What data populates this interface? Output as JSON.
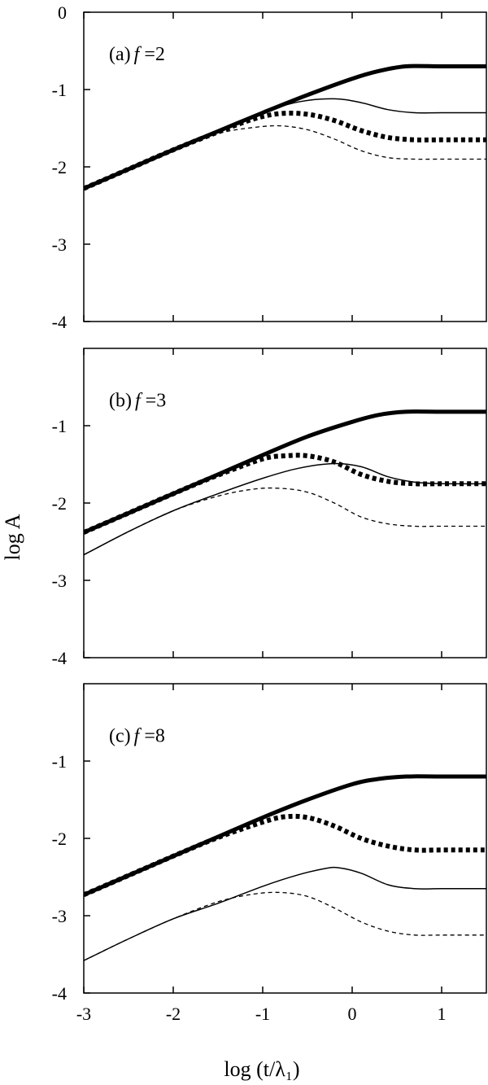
{
  "axes": {
    "xlabel": "log (t/λ₁)",
    "ylabel": "log A"
  },
  "chart_data": [
    {
      "type": "line",
      "panel_label": "(a)",
      "f_label": "f",
      "f_value": "=2",
      "xlim": [
        -3,
        1.5
      ],
      "ylim": [
        -4,
        0
      ],
      "x_ticks": [
        "-3",
        "-2",
        "-1",
        "0",
        "1"
      ],
      "y_ticks": [
        "0",
        "-1",
        "-2",
        "-3",
        "-4"
      ],
      "series": [
        {
          "style": "thick-solid",
          "x": [
            -3,
            -2.5,
            -2,
            -1.5,
            -1,
            -0.5,
            0,
            0.3,
            0.6,
            1,
            1.5
          ],
          "y": [
            -2.28,
            -2.03,
            -1.78,
            -1.54,
            -1.3,
            -1.07,
            -0.86,
            -0.76,
            -0.7,
            -0.7,
            -0.7
          ]
        },
        {
          "style": "thin-solid",
          "x": [
            -3,
            -2.5,
            -2,
            -1.5,
            -1,
            -0.6,
            -0.2,
            0.1,
            0.4,
            0.7,
            1,
            1.5
          ],
          "y": [
            -2.28,
            -2.03,
            -1.78,
            -1.54,
            -1.3,
            -1.16,
            -1.12,
            -1.17,
            -1.26,
            -1.3,
            -1.3,
            -1.3
          ]
        },
        {
          "style": "thick-dotted",
          "x": [
            -3,
            -2.5,
            -2,
            -1.5,
            -1.1,
            -0.8,
            -0.5,
            -0.2,
            0.1,
            0.4,
            0.7,
            1,
            1.5
          ],
          "y": [
            -2.28,
            -2.03,
            -1.78,
            -1.55,
            -1.38,
            -1.31,
            -1.32,
            -1.4,
            -1.53,
            -1.62,
            -1.65,
            -1.65,
            -1.65
          ]
        },
        {
          "style": "thin-dashed",
          "x": [
            -3,
            -2.5,
            -2,
            -1.5,
            -1.1,
            -0.8,
            -0.5,
            -0.2,
            0.1,
            0.4,
            0.7,
            1,
            1.5
          ],
          "y": [
            -2.28,
            -2.03,
            -1.78,
            -1.57,
            -1.49,
            -1.47,
            -1.52,
            -1.64,
            -1.79,
            -1.88,
            -1.9,
            -1.9,
            -1.9
          ]
        }
      ]
    },
    {
      "type": "line",
      "panel_label": "(b)",
      "f_label": "f",
      "f_value": "=3",
      "xlim": [
        -3,
        1.5
      ],
      "ylim": [
        -4,
        0
      ],
      "x_ticks": [
        "-3",
        "-2",
        "-1",
        "0",
        "1"
      ],
      "y_ticks": [
        "-1",
        "-2",
        "-3",
        "-4"
      ],
      "series": [
        {
          "style": "thick-solid",
          "x": [
            -3,
            -2.5,
            -2,
            -1.5,
            -1,
            -0.5,
            0,
            0.3,
            0.6,
            1,
            1.5
          ],
          "y": [
            -2.38,
            -2.13,
            -1.88,
            -1.63,
            -1.38,
            -1.14,
            -0.95,
            -0.86,
            -0.82,
            -0.82,
            -0.82
          ]
        },
        {
          "style": "thin-solid",
          "x": [
            -3,
            -2.5,
            -2,
            -1.5,
            -1,
            -0.6,
            -0.2,
            0.1,
            0.4,
            0.7,
            1,
            1.5
          ],
          "y": [
            -2.67,
            -2.37,
            -2.1,
            -1.88,
            -1.68,
            -1.55,
            -1.49,
            -1.53,
            -1.66,
            -1.73,
            -1.75,
            -1.75
          ]
        },
        {
          "style": "thick-dotted",
          "x": [
            -3,
            -2.5,
            -2,
            -1.5,
            -1,
            -0.75,
            -0.5,
            -0.2,
            0.1,
            0.4,
            0.7,
            1,
            1.5
          ],
          "y": [
            -2.38,
            -2.13,
            -1.88,
            -1.64,
            -1.43,
            -1.39,
            -1.39,
            -1.47,
            -1.63,
            -1.72,
            -1.75,
            -1.75,
            -1.75
          ]
        },
        {
          "style": "thin-dashed",
          "x": [
            -3,
            -2.5,
            -2,
            -1.5,
            -1.1,
            -0.8,
            -0.5,
            -0.2,
            0.1,
            0.4,
            0.7,
            1,
            1.5
          ],
          "y": [
            -2.67,
            -2.37,
            -2.1,
            -1.91,
            -1.82,
            -1.81,
            -1.86,
            -2.0,
            -2.18,
            -2.27,
            -2.3,
            -2.3,
            -2.3
          ]
        }
      ]
    },
    {
      "type": "line",
      "panel_label": "(c)",
      "f_label": "f",
      "f_value": "=8",
      "xlim": [
        -3,
        1.5
      ],
      "ylim": [
        -4,
        0
      ],
      "x_ticks": [
        "-3",
        "-2",
        "-1",
        "0",
        "1"
      ],
      "y_ticks": [
        "-1",
        "-2",
        "-3",
        "-4"
      ],
      "series": [
        {
          "style": "thick-solid",
          "x": [
            -3,
            -2.5,
            -2,
            -1.5,
            -1,
            -0.5,
            0,
            0.3,
            0.6,
            1,
            1.5
          ],
          "y": [
            -2.73,
            -2.48,
            -2.23,
            -1.98,
            -1.73,
            -1.5,
            -1.3,
            -1.23,
            -1.2,
            -1.2,
            -1.2
          ]
        },
        {
          "style": "thin-solid",
          "x": [
            -3,
            -2.5,
            -2,
            -1.5,
            -1,
            -0.6,
            -0.3,
            -0.15,
            0.1,
            0.4,
            0.7,
            1,
            1.5
          ],
          "y": [
            -3.58,
            -3.3,
            -3.04,
            -2.84,
            -2.62,
            -2.47,
            -2.39,
            -2.38,
            -2.45,
            -2.6,
            -2.65,
            -2.65,
            -2.65
          ]
        },
        {
          "style": "thick-dotted",
          "x": [
            -3,
            -2.5,
            -2,
            -1.5,
            -1,
            -0.75,
            -0.5,
            -0.2,
            0.1,
            0.4,
            0.7,
            1,
            1.5
          ],
          "y": [
            -2.73,
            -2.48,
            -2.23,
            -1.99,
            -1.79,
            -1.72,
            -1.73,
            -1.84,
            -2.0,
            -2.1,
            -2.15,
            -2.15,
            -2.15
          ]
        },
        {
          "style": "thin-dashed",
          "x": [
            -3,
            -2.5,
            -2,
            -1.5,
            -1.1,
            -0.8,
            -0.5,
            -0.2,
            0.1,
            0.4,
            0.7,
            1,
            1.5
          ],
          "y": [
            -3.58,
            -3.3,
            -3.04,
            -2.82,
            -2.72,
            -2.7,
            -2.75,
            -2.9,
            -3.08,
            -3.2,
            -3.25,
            -3.25,
            -3.25
          ]
        }
      ]
    }
  ]
}
